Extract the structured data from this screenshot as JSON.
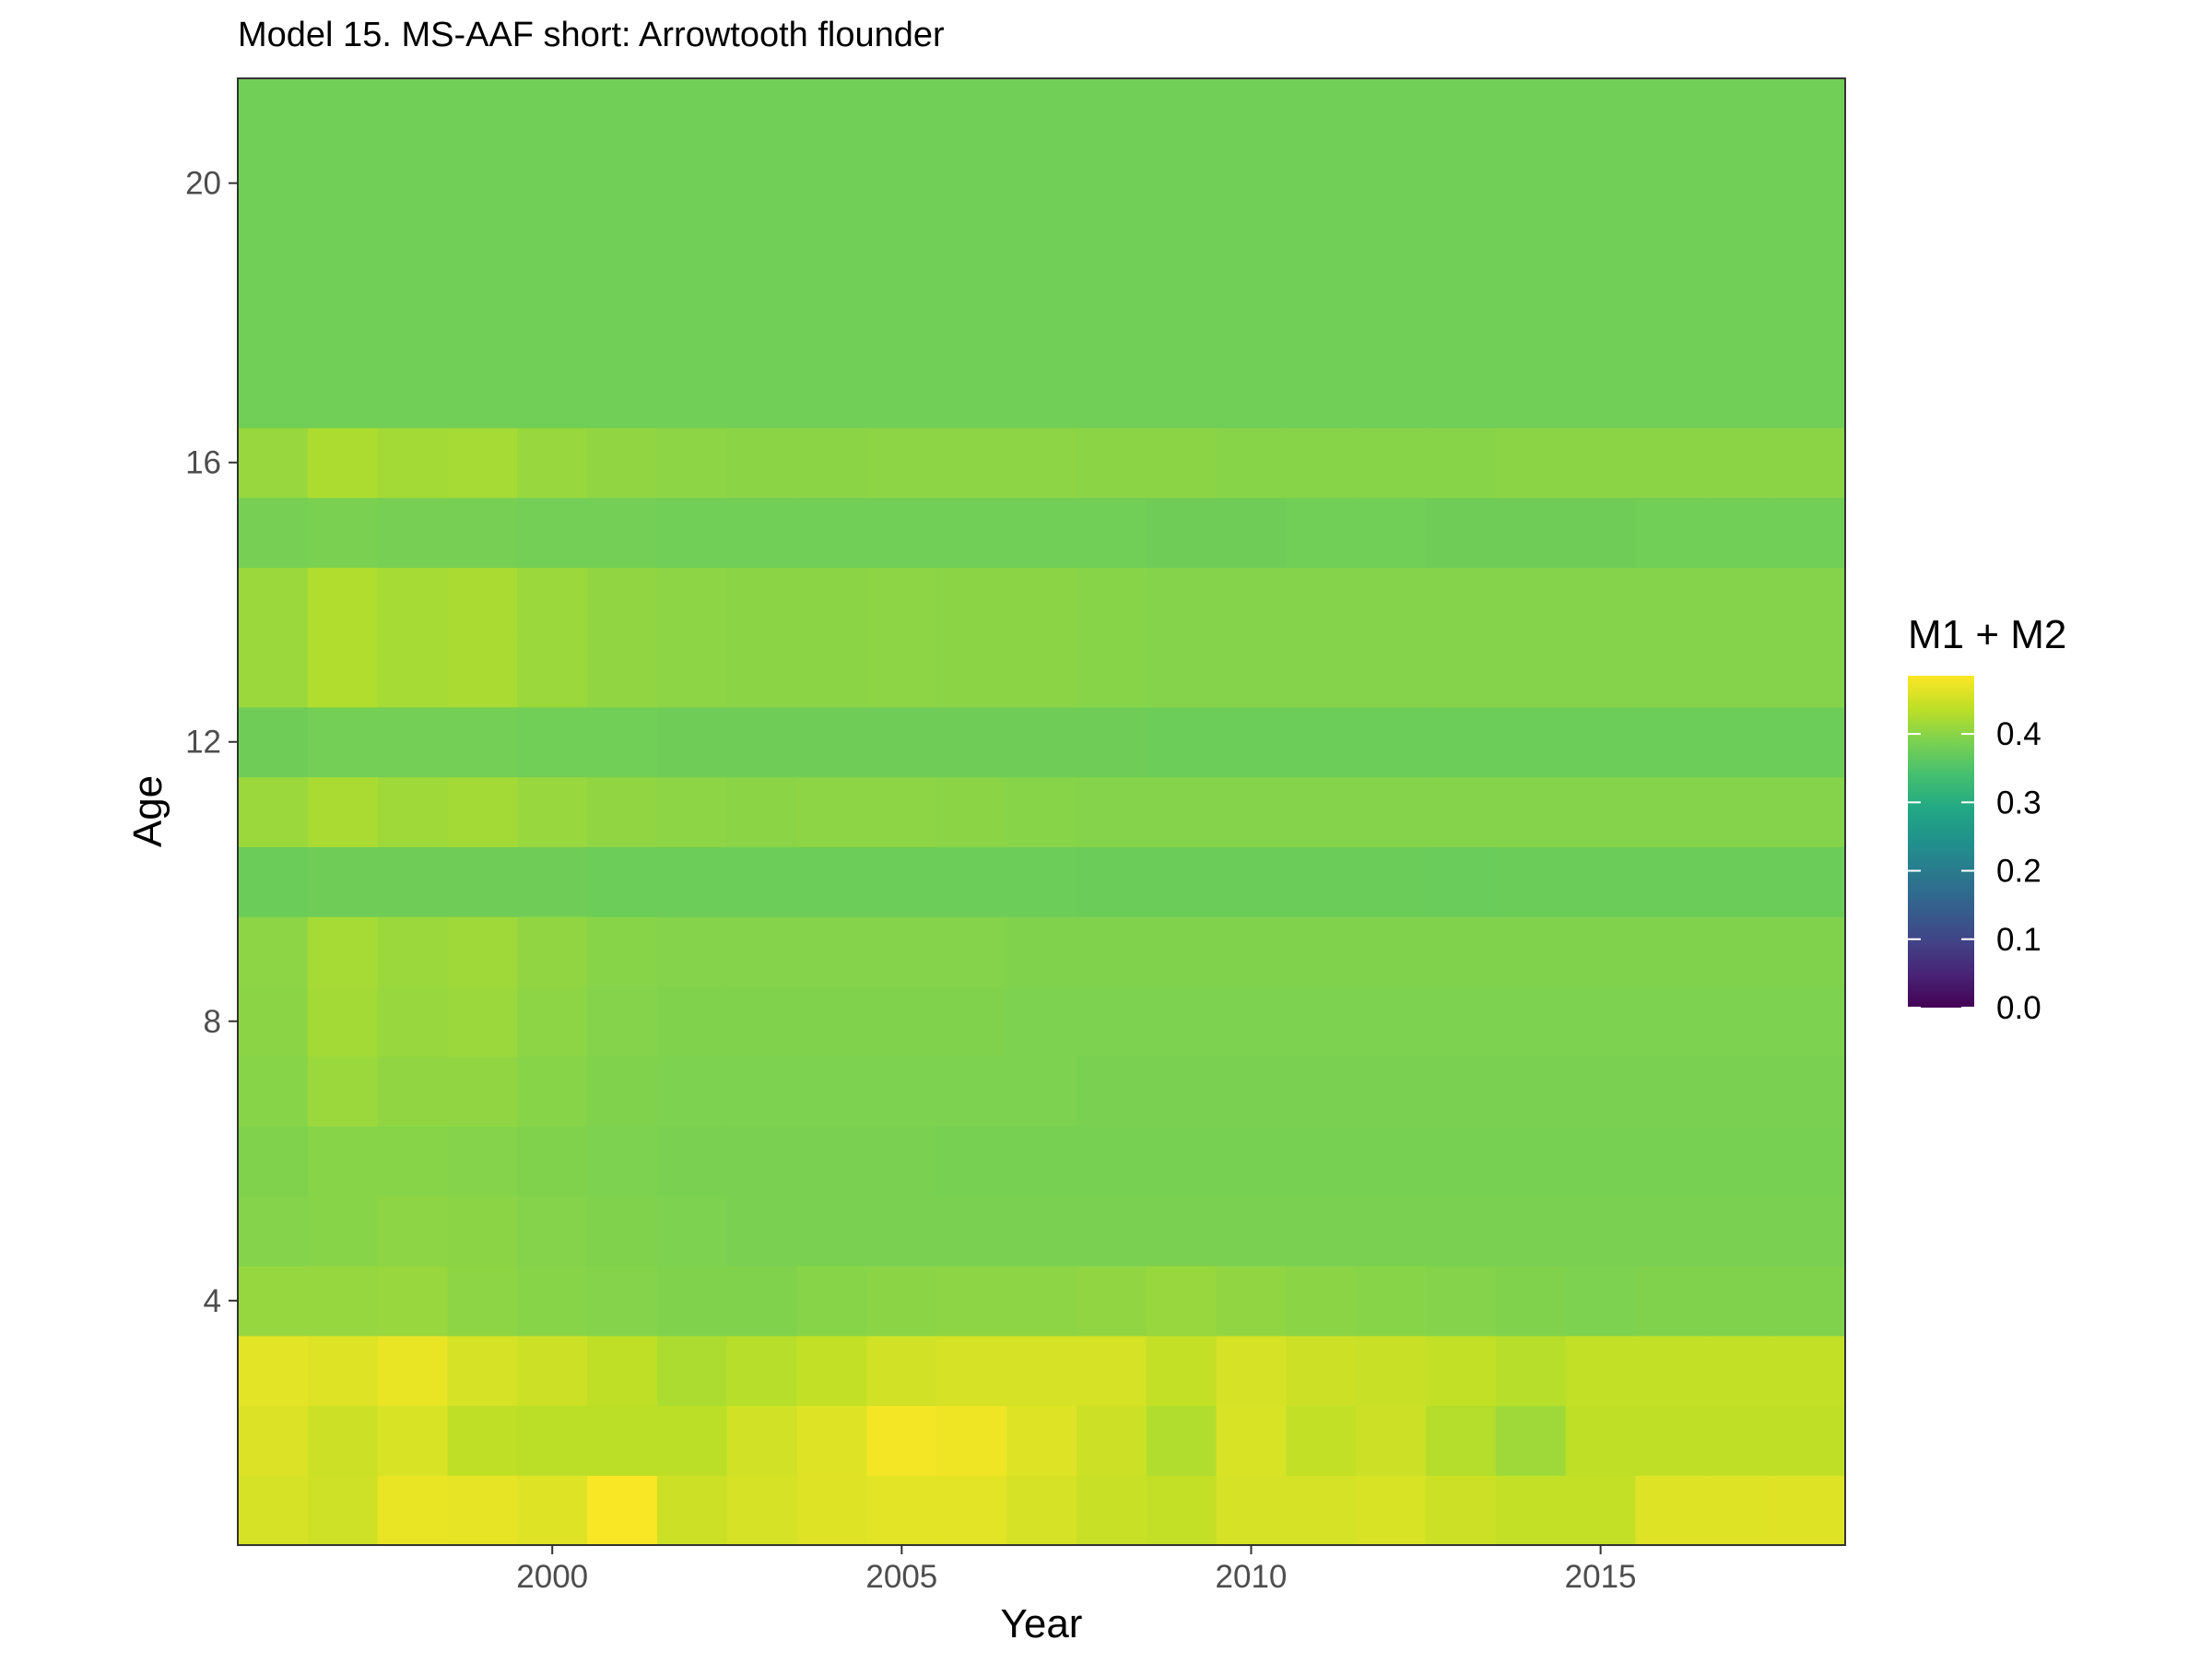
{
  "chart_data": {
    "type": "heatmap",
    "title": "Model 15. MS-AAF short: Arrowtooth flounder",
    "xlabel": "Year",
    "ylabel": "Age",
    "x": [
      1996,
      1997,
      1998,
      1999,
      2000,
      2001,
      2002,
      2003,
      2004,
      2005,
      2006,
      2007,
      2008,
      2009,
      2010,
      2011,
      2012,
      2013,
      2014,
      2015,
      2016,
      2017,
      2018
    ],
    "y": [
      1,
      2,
      3,
      4,
      5,
      6,
      7,
      8,
      9,
      10,
      11,
      12,
      13,
      14,
      15,
      16,
      17,
      18,
      19,
      20,
      21
    ],
    "xlim": [
      1995.5,
      2018.5
    ],
    "ylim": [
      0.5,
      21.5
    ],
    "x_ticks": [
      2000,
      2005,
      2010,
      2015
    ],
    "y_ticks": [
      4,
      8,
      12,
      16,
      20
    ],
    "legend": {
      "title": "M1 + M2",
      "position": "right",
      "range": [
        0,
        0.485
      ],
      "ticks": [
        "0.0",
        "0.1",
        "0.2",
        "0.3",
        "0.4"
      ],
      "tick_values": [
        0,
        0.1,
        0.2,
        0.3,
        0.4
      ]
    },
    "colormap": "viridis",
    "grid": false,
    "z": [
      [
        0.455,
        0.45,
        0.47,
        0.468,
        0.462,
        0.482,
        0.448,
        0.455,
        0.462,
        0.465,
        0.465,
        0.455,
        0.445,
        0.442,
        0.455,
        0.455,
        0.458,
        0.448,
        0.442,
        0.442,
        0.462,
        0.462,
        0.462
      ],
      [
        0.46,
        0.448,
        0.458,
        0.438,
        0.435,
        0.435,
        0.435,
        0.452,
        0.462,
        0.478,
        0.475,
        0.462,
        0.448,
        0.428,
        0.458,
        0.44,
        0.448,
        0.43,
        0.415,
        0.438,
        0.438,
        0.438,
        0.438
      ],
      [
        0.465,
        0.462,
        0.47,
        0.455,
        0.448,
        0.438,
        0.425,
        0.432,
        0.44,
        0.452,
        0.455,
        0.455,
        0.455,
        0.442,
        0.455,
        0.448,
        0.445,
        0.44,
        0.432,
        0.44,
        0.44,
        0.44,
        0.44
      ],
      [
        0.408,
        0.408,
        0.41,
        0.402,
        0.398,
        0.395,
        0.392,
        0.392,
        0.398,
        0.4,
        0.402,
        0.402,
        0.405,
        0.41,
        0.405,
        0.4,
        0.398,
        0.395,
        0.392,
        0.39,
        0.392,
        0.392,
        0.392
      ],
      [
        0.395,
        0.398,
        0.402,
        0.4,
        0.395,
        0.392,
        0.39,
        0.388,
        0.388,
        0.388,
        0.388,
        0.388,
        0.388,
        0.388,
        0.388,
        0.388,
        0.388,
        0.388,
        0.388,
        0.388,
        0.388,
        0.388,
        0.388
      ],
      [
        0.392,
        0.398,
        0.398,
        0.395,
        0.392,
        0.39,
        0.388,
        0.388,
        0.388,
        0.388,
        0.386,
        0.386,
        0.386,
        0.386,
        0.386,
        0.386,
        0.386,
        0.386,
        0.386,
        0.386,
        0.386,
        0.386,
        0.386
      ],
      [
        0.398,
        0.412,
        0.405,
        0.405,
        0.398,
        0.392,
        0.39,
        0.39,
        0.39,
        0.39,
        0.39,
        0.39,
        0.388,
        0.388,
        0.388,
        0.388,
        0.388,
        0.388,
        0.388,
        0.388,
        0.388,
        0.388,
        0.388
      ],
      [
        0.4,
        0.418,
        0.41,
        0.412,
        0.402,
        0.395,
        0.392,
        0.392,
        0.392,
        0.392,
        0.392,
        0.39,
        0.39,
        0.39,
        0.39,
        0.39,
        0.39,
        0.39,
        0.39,
        0.39,
        0.39,
        0.39,
        0.39
      ],
      [
        0.402,
        0.42,
        0.412,
        0.415,
        0.405,
        0.398,
        0.395,
        0.395,
        0.395,
        0.395,
        0.395,
        0.392,
        0.392,
        0.392,
        0.392,
        0.392,
        0.392,
        0.392,
        0.392,
        0.392,
        0.392,
        0.392,
        0.392
      ],
      [
        0.375,
        0.378,
        0.378,
        0.378,
        0.378,
        0.376,
        0.376,
        0.376,
        0.376,
        0.376,
        0.376,
        0.376,
        0.375,
        0.375,
        0.375,
        0.375,
        0.375,
        0.374,
        0.375,
        0.375,
        0.375,
        0.375,
        0.375
      ],
      [
        0.412,
        0.422,
        0.415,
        0.418,
        0.41,
        0.405,
        0.402,
        0.4,
        0.402,
        0.402,
        0.4,
        0.398,
        0.396,
        0.396,
        0.396,
        0.396,
        0.396,
        0.396,
        0.396,
        0.396,
        0.396,
        0.396,
        0.396
      ],
      [
        0.378,
        0.382,
        0.382,
        0.382,
        0.38,
        0.38,
        0.378,
        0.378,
        0.378,
        0.378,
        0.378,
        0.378,
        0.378,
        0.376,
        0.376,
        0.376,
        0.376,
        0.376,
        0.376,
        0.376,
        0.376,
        0.376,
        0.376
      ],
      [
        0.412,
        0.428,
        0.42,
        0.422,
        0.412,
        0.405,
        0.402,
        0.4,
        0.4,
        0.402,
        0.4,
        0.4,
        0.398,
        0.396,
        0.396,
        0.396,
        0.396,
        0.396,
        0.396,
        0.396,
        0.396,
        0.396,
        0.396
      ],
      [
        0.412,
        0.428,
        0.42,
        0.422,
        0.412,
        0.405,
        0.402,
        0.4,
        0.4,
        0.402,
        0.4,
        0.4,
        0.398,
        0.396,
        0.396,
        0.396,
        0.396,
        0.396,
        0.396,
        0.396,
        0.396,
        0.396,
        0.396
      ],
      [
        0.385,
        0.388,
        0.385,
        0.385,
        0.382,
        0.382,
        0.38,
        0.38,
        0.38,
        0.38,
        0.38,
        0.38,
        0.38,
        0.378,
        0.378,
        0.38,
        0.38,
        0.378,
        0.378,
        0.378,
        0.38,
        0.38,
        0.38
      ],
      [
        0.41,
        0.425,
        0.418,
        0.42,
        0.41,
        0.405,
        0.402,
        0.4,
        0.4,
        0.402,
        0.402,
        0.402,
        0.4,
        0.4,
        0.398,
        0.398,
        0.398,
        0.398,
        0.4,
        0.4,
        0.4,
        0.4,
        0.4
      ],
      [
        0.38,
        0.38,
        0.38,
        0.38,
        0.38,
        0.38,
        0.38,
        0.38,
        0.38,
        0.38,
        0.38,
        0.38,
        0.38,
        0.38,
        0.38,
        0.38,
        0.38,
        0.38,
        0.38,
        0.38,
        0.38,
        0.38,
        0.38
      ],
      [
        0.38,
        0.38,
        0.38,
        0.38,
        0.38,
        0.38,
        0.38,
        0.38,
        0.38,
        0.38,
        0.38,
        0.38,
        0.38,
        0.38,
        0.38,
        0.38,
        0.38,
        0.38,
        0.38,
        0.38,
        0.38,
        0.38,
        0.38
      ],
      [
        0.38,
        0.38,
        0.38,
        0.38,
        0.38,
        0.38,
        0.38,
        0.38,
        0.38,
        0.38,
        0.38,
        0.38,
        0.38,
        0.38,
        0.38,
        0.38,
        0.38,
        0.38,
        0.38,
        0.38,
        0.38,
        0.38,
        0.38
      ],
      [
        0.38,
        0.38,
        0.38,
        0.38,
        0.38,
        0.38,
        0.38,
        0.38,
        0.38,
        0.38,
        0.38,
        0.38,
        0.38,
        0.38,
        0.38,
        0.38,
        0.38,
        0.38,
        0.38,
        0.38,
        0.38,
        0.38,
        0.38
      ],
      [
        0.38,
        0.38,
        0.38,
        0.38,
        0.38,
        0.38,
        0.38,
        0.38,
        0.38,
        0.38,
        0.38,
        0.38,
        0.38,
        0.38,
        0.38,
        0.38,
        0.38,
        0.38,
        0.38,
        0.38,
        0.38,
        0.38,
        0.38
      ]
    ]
  }
}
